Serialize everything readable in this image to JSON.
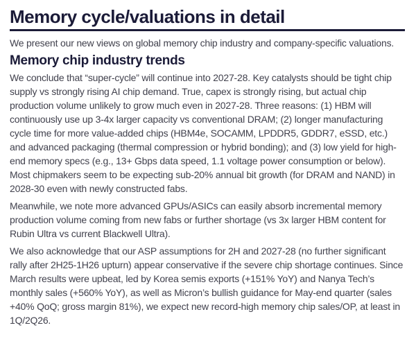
{
  "page": {
    "title": "Memory cycle/valuations in detail",
    "intro": "We present our new views on global memory chip industry and company-specific valuations.",
    "section": {
      "heading": "Memory chip industry trends",
      "paragraphs": [
        "We conclude that “super-cycle” will continue into 2027-28. Key catalysts should be tight chip supply vs strongly rising AI chip demand. True, capex is strongly rising, but actual chip production volume unlikely to grow much even in 2027-28. Three reasons: (1) HBM will continuously use up 3-4x larger capacity vs conventional DRAM; (2) longer manufacturing cycle time for more value-added chips (HBM4e, SOCAMM, LPDDR5, GDDR7, eSSD, etc.) and advanced packaging (thermal compression or hybrid bonding); and (3) low yield for high-end memory specs (e.g., 13+ Gbps data speed, 1.1 voltage power consumption or below). Most chipmakers seem to be expecting sub-20% annual bit growth (for DRAM and NAND) in 2028-30 even with newly constructed fabs.",
        "Meanwhile, we note more advanced GPUs/ASICs can easily absorb incremental memory production volume coming from new fabs or further shortage (vs 3x larger HBM content for Rubin Ultra vs current Blackwell Ultra).",
        "We also acknowledge that our ASP assumptions for 2H and 2027-28 (no further significant rally after 2H25-1H26 upturn) appear conservative if the severe chip shortage continues. Since March results were upbeat, led by Korea semis exports (+151% YoY) and Nanya Tech’s monthly sales (+560% YoY), as well as Micron’s bullish guidance for May-end quarter (sales +40% QoQ; gross margin 81%), we expect new record-high memory chip sales/OP, at least in 1Q/2Q26."
      ]
    },
    "colors": {
      "heading_ink": "#1b1b38",
      "body_text": "#41414d",
      "rule": "#1b1b38",
      "background": "#ffffff"
    }
  }
}
